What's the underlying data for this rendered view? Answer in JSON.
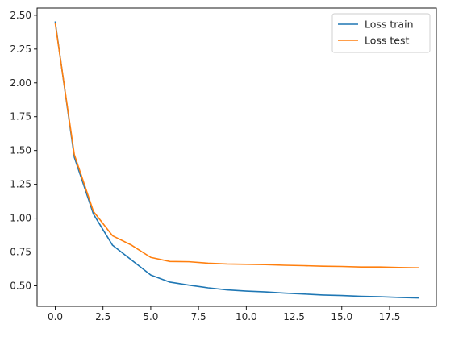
{
  "chart_data": {
    "type": "line",
    "title": "",
    "xlabel": "",
    "ylabel": "",
    "xlim": [
      -0.95,
      19.95
    ],
    "ylim": [
      0.348,
      2.553
    ],
    "grid": false,
    "legend_position": "top-right",
    "x_ticks": [
      0,
      2.5,
      5,
      7.5,
      10,
      12.5,
      15,
      17.5
    ],
    "x_tick_labels": [
      "0.0",
      "2.5",
      "5.0",
      "7.5",
      "10.0",
      "12.5",
      "15.0",
      "17.5"
    ],
    "y_ticks": [
      0.5,
      0.75,
      1.0,
      1.25,
      1.5,
      1.75,
      2.0,
      2.25,
      2.5
    ],
    "y_tick_labels": [
      "0.50",
      "0.75",
      "1.00",
      "1.25",
      "1.50",
      "1.75",
      "2.00",
      "2.25",
      "2.50"
    ],
    "x": [
      0,
      1,
      2,
      3,
      4,
      5,
      6,
      7,
      8,
      9,
      10,
      11,
      12,
      13,
      14,
      15,
      16,
      17,
      18,
      19
    ],
    "series": [
      {
        "name": "Loss train",
        "color": "#1f77b4",
        "values": [
          2.45,
          1.45,
          1.03,
          0.8,
          0.69,
          0.58,
          0.527,
          0.505,
          0.485,
          0.47,
          0.461,
          0.455,
          0.446,
          0.439,
          0.432,
          0.428,
          0.422,
          0.419,
          0.414,
          0.41
        ]
      },
      {
        "name": "Loss test",
        "color": "#ff7f0e",
        "values": [
          2.44,
          1.47,
          1.05,
          0.87,
          0.8,
          0.71,
          0.68,
          0.678,
          0.667,
          0.661,
          0.659,
          0.657,
          0.652,
          0.649,
          0.645,
          0.643,
          0.639,
          0.639,
          0.635,
          0.633
        ]
      }
    ]
  }
}
